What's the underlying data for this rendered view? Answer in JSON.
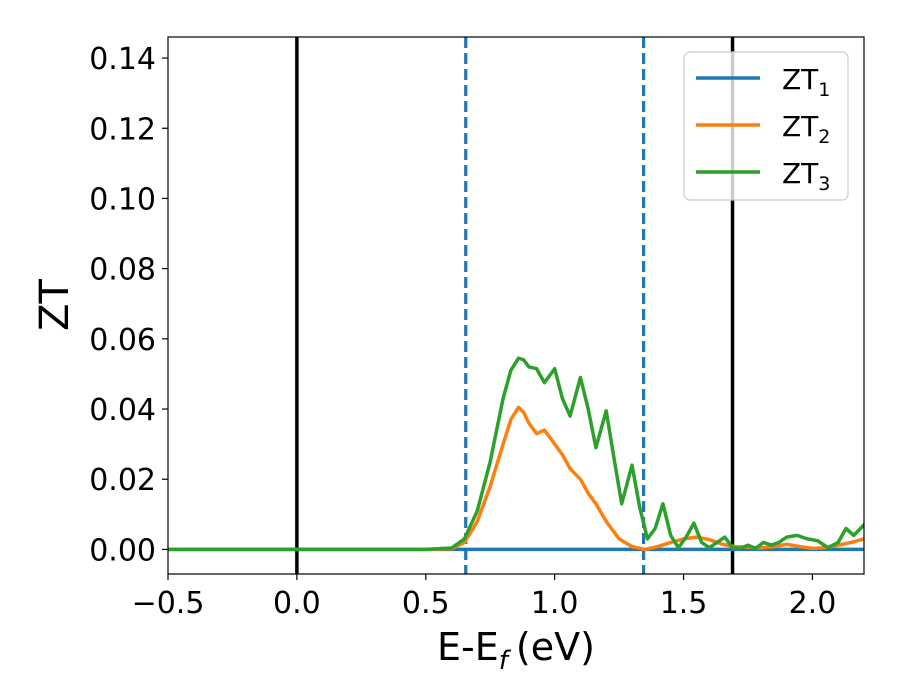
{
  "chart_data": {
    "type": "line",
    "xlabel": "E-E",
    "xlabel_sub": "f",
    "xlabel_unit": "(eV)",
    "ylabel": "ZT",
    "xlim": [
      -0.5,
      2.2
    ],
    "ylim": [
      -0.007,
      0.146
    ],
    "xticks": [
      -0.5,
      0.0,
      0.5,
      1.0,
      1.5,
      2.0
    ],
    "xtick_labels": [
      "−0.5",
      "0.0",
      "0.5",
      "1.0",
      "1.5",
      "2.0"
    ],
    "yticks": [
      0.0,
      0.02,
      0.04,
      0.06,
      0.08,
      0.1,
      0.12,
      0.14
    ],
    "ytick_labels": [
      "0.00",
      "0.02",
      "0.04",
      "0.06",
      "0.08",
      "0.10",
      "0.12",
      "0.14"
    ],
    "grid": false,
    "legend_position": "top-right",
    "vertical_lines": [
      {
        "x": 0.0,
        "style": "solid",
        "color": "#000000"
      },
      {
        "x": 0.655,
        "style": "dashed",
        "color": "#1f77b4"
      },
      {
        "x": 1.345,
        "style": "dashed",
        "color": "#1f77b4"
      },
      {
        "x": 1.69,
        "style": "solid",
        "color": "#000000"
      }
    ],
    "series": [
      {
        "name": "ZT",
        "name_sub": "1",
        "color": "#1f77b4",
        "x": [
          -0.5,
          0.0,
          0.5,
          1.0,
          1.5,
          2.0,
          2.2
        ],
        "y": [
          0.0,
          0.0,
          0.0,
          0.0,
          0.0,
          0.0,
          0.0
        ]
      },
      {
        "name": "ZT",
        "name_sub": "2",
        "color": "#ff7f0e",
        "x": [
          -0.5,
          0.0,
          0.5,
          0.6,
          0.65,
          0.7,
          0.75,
          0.8,
          0.83,
          0.86,
          0.88,
          0.9,
          0.93,
          0.96,
          1.0,
          1.03,
          1.06,
          1.1,
          1.13,
          1.16,
          1.2,
          1.25,
          1.3,
          1.35,
          1.4,
          1.45,
          1.5,
          1.55,
          1.6,
          1.65,
          1.7,
          1.75,
          1.8,
          1.85,
          1.9,
          1.95,
          2.0,
          2.05,
          2.1,
          2.15,
          2.2
        ],
        "y": [
          0.0,
          0.0,
          0.0,
          0.0002,
          0.002,
          0.008,
          0.018,
          0.03,
          0.037,
          0.0405,
          0.039,
          0.036,
          0.033,
          0.034,
          0.03,
          0.027,
          0.023,
          0.02,
          0.016,
          0.013,
          0.008,
          0.003,
          0.0008,
          0.0,
          0.0008,
          0.002,
          0.003,
          0.0035,
          0.0028,
          0.0015,
          0.0008,
          0.0006,
          0.0004,
          0.0008,
          0.0015,
          0.0008,
          0.0003,
          0.0005,
          0.0012,
          0.002,
          0.003
        ]
      },
      {
        "name": "ZT",
        "name_sub": "3",
        "color": "#2ca02c",
        "x": [
          -0.5,
          0.0,
          0.5,
          0.6,
          0.65,
          0.7,
          0.75,
          0.8,
          0.83,
          0.86,
          0.88,
          0.9,
          0.93,
          0.96,
          1.0,
          1.03,
          1.06,
          1.1,
          1.13,
          1.16,
          1.2,
          1.23,
          1.26,
          1.3,
          1.33,
          1.36,
          1.39,
          1.42,
          1.45,
          1.48,
          1.51,
          1.54,
          1.57,
          1.6,
          1.63,
          1.66,
          1.69,
          1.72,
          1.75,
          1.78,
          1.81,
          1.84,
          1.87,
          1.9,
          1.94,
          1.98,
          2.02,
          2.06,
          2.1,
          2.13,
          2.16,
          2.2
        ],
        "y": [
          0.0,
          0.0,
          0.0,
          0.0004,
          0.003,
          0.011,
          0.025,
          0.043,
          0.051,
          0.0545,
          0.054,
          0.052,
          0.0515,
          0.0475,
          0.0515,
          0.043,
          0.038,
          0.049,
          0.04,
          0.029,
          0.0395,
          0.026,
          0.013,
          0.024,
          0.012,
          0.003,
          0.006,
          0.013,
          0.004,
          0.0005,
          0.0035,
          0.0075,
          0.002,
          0.0005,
          0.002,
          0.0035,
          0.0005,
          0.0003,
          0.0012,
          0.0003,
          0.002,
          0.0012,
          0.002,
          0.0035,
          0.004,
          0.003,
          0.0025,
          0.0005,
          0.002,
          0.006,
          0.004,
          0.007
        ]
      }
    ]
  }
}
